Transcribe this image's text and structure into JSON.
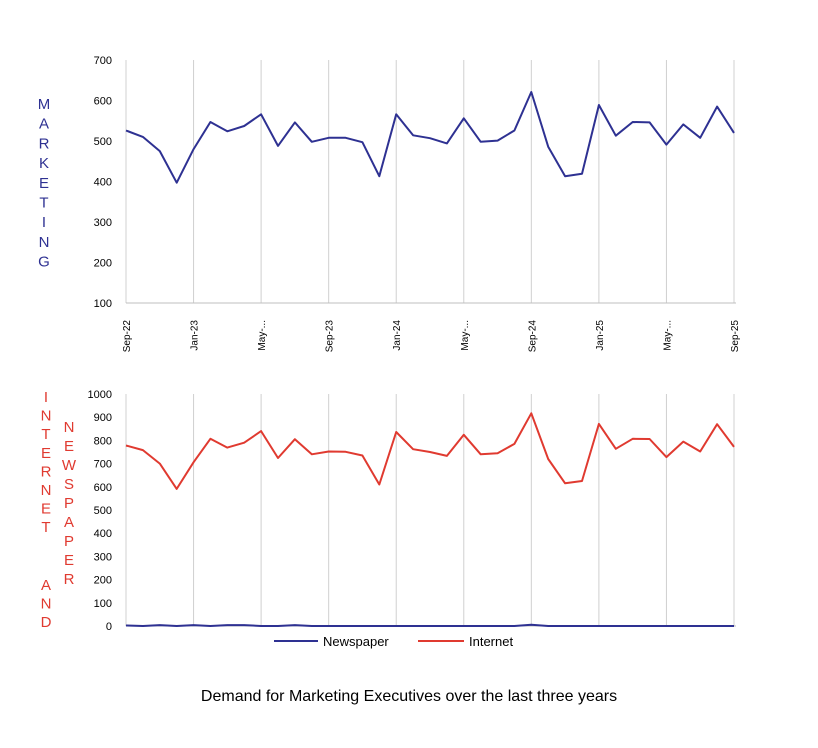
{
  "chart_data": [
    {
      "type": "line",
      "title": "",
      "ylabel": "MARKETING",
      "ylim": [
        100,
        700
      ],
      "yticks": [
        100,
        200,
        300,
        400,
        500,
        600,
        700
      ],
      "xtick_labels": [
        "Sep-22",
        "Jan-23",
        "May-...",
        "Sep-23",
        "Jan-24",
        "May-...",
        "Sep-24",
        "Jan-25",
        "May-...",
        "Sep-25"
      ],
      "series": [
        {
          "name": "Marketing",
          "color": "#2e3192",
          "values": [
            526,
            510,
            475,
            397,
            480,
            547,
            524,
            537,
            566,
            488,
            546,
            498,
            508,
            508,
            497,
            413,
            566,
            514,
            507,
            494,
            556,
            498,
            501,
            526,
            621,
            486,
            413,
            419,
            589,
            513,
            547,
            546,
            491,
            541,
            508,
            585,
            520
          ]
        }
      ]
    },
    {
      "type": "line",
      "title": "",
      "ylabel": "INTERNET AND NEWSPAPER",
      "ylim": [
        0,
        1000
      ],
      "yticks": [
        0,
        100,
        200,
        300,
        400,
        500,
        600,
        700,
        800,
        900,
        1000
      ],
      "series": [
        {
          "name": "Newspaper",
          "color": "#2e3192",
          "values": [
            2,
            0,
            4,
            0,
            4,
            0,
            4,
            4,
            0,
            0,
            4,
            0,
            0,
            0,
            0,
            0,
            0,
            0,
            0,
            0,
            0,
            0,
            0,
            0,
            5,
            0,
            0,
            0,
            0,
            0,
            0,
            0,
            0,
            0,
            0,
            0,
            0
          ]
        },
        {
          "name": "Internet",
          "color": "#e03a30",
          "values": [
            778,
            758,
            700,
            591,
            706,
            807,
            769,
            790,
            840,
            724,
            805,
            740,
            752,
            751,
            735,
            610,
            836,
            762,
            750,
            733,
            824,
            740,
            745,
            785,
            917,
            720,
            615,
            625,
            871,
            764,
            807,
            806,
            728,
            795,
            752,
            870,
            772
          ]
        }
      ],
      "legend": [
        "Newspaper",
        "Internet"
      ]
    }
  ],
  "labels": {
    "marketing_letters": [
      "M",
      "A",
      "R",
      "K",
      "E",
      "T",
      "I",
      "N",
      "G"
    ],
    "internet_letters": [
      "I",
      "N",
      "T",
      "E",
      "R",
      "N",
      "E",
      "T"
    ],
    "and_letters": [
      "A",
      "N",
      "D"
    ],
    "newspaper_letters": [
      "N",
      "E",
      "W",
      "S",
      "P",
      "A",
      "P",
      "E",
      "R"
    ]
  },
  "legend": {
    "newspaper": "Newspaper",
    "internet": "Internet"
  },
  "caption": "Demand for Marketing Executives over the last three years"
}
